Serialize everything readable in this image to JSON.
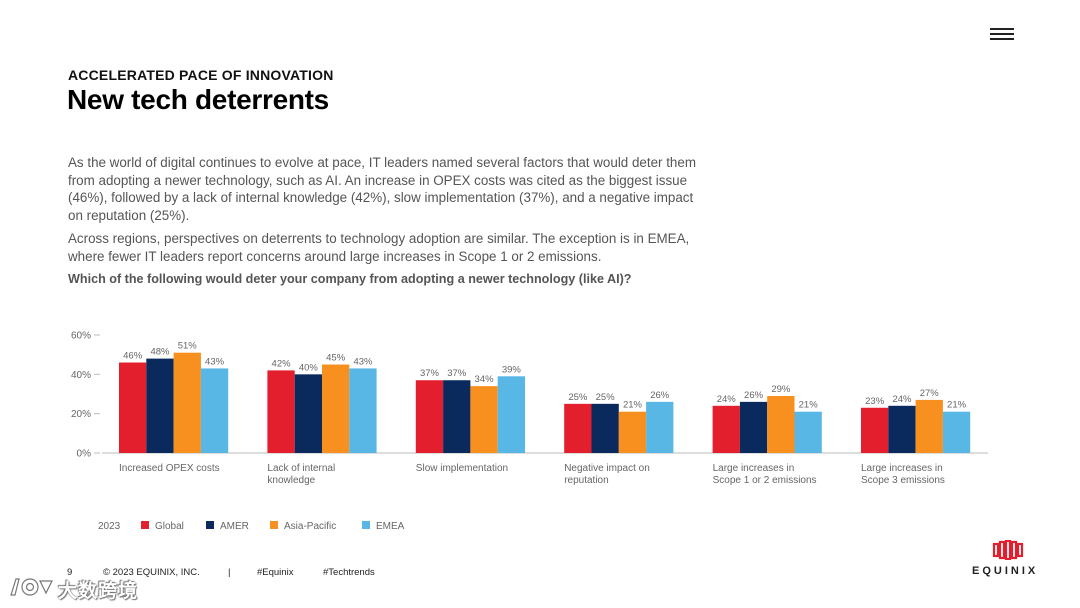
{
  "header": {
    "eyebrow": "ACCELERATED PACE OF INNOVATION",
    "title": "New tech deterrents"
  },
  "body": {
    "paragraph1": "As the world of digital continues to evolve at pace, IT leaders named several factors that would deter them from adopting a newer technology, such as AI. An increase in OPEX costs was cited as the biggest issue (46%), followed by a lack of internal knowledge (42%), slow implementation (37%), and a negative impact on reputation (25%).",
    "paragraph2": "Across regions, perspectives on deterrents to technology adoption are similar. The exception is in EMEA, where fewer IT leaders report concerns around large increases in Scope 1 or 2 emissions.",
    "question": "Which of the following would deter your company from adopting a newer technology (like AI)?"
  },
  "chart_data": {
    "type": "bar",
    "title": "Which of the following would deter your company from adopting a newer technology (like AI)?",
    "categories": [
      [
        "Increased OPEX costs"
      ],
      [
        "Lack of internal",
        "knowledge"
      ],
      [
        "Slow implementation"
      ],
      [
        "Negative impact on",
        "reputation"
      ],
      [
        "Large increases in",
        "Scope 1 or 2 emissions"
      ],
      [
        "Large increases in",
        "Scope 3 emissions"
      ]
    ],
    "series": [
      {
        "name": "Global",
        "color": "#e31e2d",
        "values": [
          46,
          42,
          37,
          25,
          24,
          23
        ]
      },
      {
        "name": "AMER",
        "color": "#0a2a5e",
        "values": [
          48,
          40,
          37,
          25,
          26,
          24
        ]
      },
      {
        "name": "Asia-Pacific",
        "color": "#f7901e",
        "values": [
          51,
          45,
          34,
          21,
          29,
          27
        ]
      },
      {
        "name": "EMEA",
        "color": "#59b7e6",
        "values": [
          43,
          43,
          39,
          26,
          21,
          21
        ]
      }
    ],
    "yticks": [
      0,
      20,
      40,
      60
    ],
    "ytick_suffix": "%",
    "value_suffix": "%",
    "ylim": [
      0,
      60
    ],
    "legend_title": "2023",
    "legend_position": "bottom-left",
    "xlabel": "",
    "ylabel": "",
    "grid": false
  },
  "footer": {
    "page_number": "9",
    "copyright": "© 2023 EQUINIX, INC.",
    "separator": "|",
    "hashtag1": "#Equinix",
    "hashtag2": "#Techtrends"
  },
  "logo": {
    "text": "EQUINIX",
    "icon": "equinix-logo-icon",
    "color": "#e31e2d"
  },
  "watermark": {
    "text": "大数跨境",
    "icon": "watermark-logo-icon"
  },
  "menu": {
    "icon": "hamburger-menu-icon"
  }
}
